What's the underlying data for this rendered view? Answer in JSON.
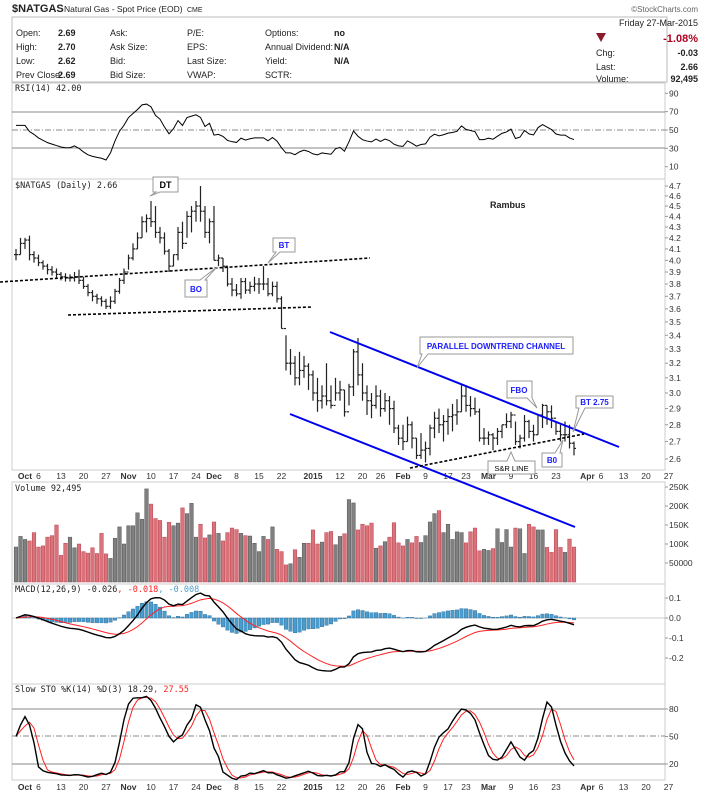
{
  "header": {
    "symbol": "$NATGAS",
    "name": "Natural Gas - Spot Price (EOD)",
    "exchange": "CME",
    "copyright": "©StockCharts.com",
    "date": "Friday  27-Mar-2015",
    "fields": {
      "open_label": "Open:",
      "open": "2.69",
      "high_label": "High:",
      "high": "2.70",
      "low_label": "Low:",
      "low": "2.62",
      "prev_close_label": "Prev Close:",
      "prev_close": "2.69",
      "ask_label": "Ask:",
      "ask_size_label": "Ask Size:",
      "bid_label": "Bid:",
      "bid_size_label": "Bid Size:",
      "pe_label": "P/E:",
      "eps_label": "EPS:",
      "last_size_label": "Last Size:",
      "vwap_label": "VWAP:",
      "options_label": "Options:",
      "options": "no",
      "dividend_label": "Annual Dividend:",
      "dividend": "N/A",
      "yield_label": "Yield:",
      "yield": "N/A",
      "sctr_label": "SCTR:",
      "pct_change": "-1.08%",
      "chg_label": "Chg:",
      "chg": "-0.03",
      "last_label": "Last:",
      "last": "2.66",
      "volume_label": "Volume:",
      "volume": "92,495"
    },
    "down_color": "#8b1a2b"
  },
  "panels": {
    "rsi": {
      "label": "RSI(14) 42.00",
      "ticks": [
        "90",
        "70",
        "50",
        "30",
        "10"
      ]
    },
    "price": {
      "label": "$NATGAS (Daily) 2.66",
      "watermark": "Rambus",
      "ticks": [
        "4.7",
        "4.6",
        "4.5",
        "4.4",
        "4.3",
        "4.2",
        "4.1",
        "4.0",
        "3.9",
        "3.8",
        "3.7",
        "3.6",
        "3.5",
        "3.4",
        "3.3",
        "3.2",
        "3.1",
        "3.0",
        "2.9",
        "2.8",
        "2.7",
        "2.6"
      ]
    },
    "volume": {
      "label": "Volume 92,495",
      "ticks": [
        "250K",
        "200K",
        "150K",
        "100K",
        "50000"
      ]
    },
    "macd": {
      "label": "MACD(12,26,9) -0.026",
      "signal": ", -0.018",
      "hist": ", -0.008",
      "ticks": [
        "0.1",
        "0.0",
        "-0.1",
        "-0.2"
      ]
    },
    "sto": {
      "label": "Slow STO %K(14) %D(3) 18.29",
      "d": ", 27.55",
      "ticks": [
        "80",
        "50",
        "20"
      ]
    }
  },
  "annotations": {
    "dt": "DT",
    "bt": "BT",
    "bo": "BO",
    "channel": "PARALLEL DOWNTREND CHANNEL",
    "fbo": "FBO",
    "bt275": "BT 2.75",
    "b0": "B0",
    "sr_line": "S&R LINE"
  },
  "date_axis": [
    {
      "text": "Oct",
      "bold": true
    },
    {
      "text": "6"
    },
    {
      "text": "13"
    },
    {
      "text": "20"
    },
    {
      "text": "27"
    },
    {
      "text": "Nov",
      "bold": true
    },
    {
      "text": "10"
    },
    {
      "text": "17"
    },
    {
      "text": "24"
    },
    {
      "text": "Dec",
      "bold": true
    },
    {
      "text": "8"
    },
    {
      "text": "15"
    },
    {
      "text": "22"
    },
    {
      "text": "2015",
      "bold": true
    },
    {
      "text": "12"
    },
    {
      "text": "20"
    },
    {
      "text": "26"
    },
    {
      "text": "Feb",
      "bold": true
    },
    {
      "text": "9"
    },
    {
      "text": "17"
    },
    {
      "text": "23"
    },
    {
      "text": "Mar",
      "bold": true
    },
    {
      "text": "9"
    },
    {
      "text": "16"
    },
    {
      "text": "23"
    },
    {
      "text": "Apr",
      "bold": true
    },
    {
      "text": "6"
    },
    {
      "text": "13"
    },
    {
      "text": "20"
    },
    {
      "text": "27"
    }
  ],
  "colors": {
    "up_bar": "#808080",
    "down_bar": "#d9737a",
    "channel": "#0000ee",
    "macd_hist": "#4a9ccc",
    "signal": "#ff2020",
    "line": "#000000"
  },
  "chart_data": {
    "type": "bar",
    "scale": "log",
    "ylim": [
      2.6,
      4.7
    ],
    "ohlc_format": "[high, low, close]",
    "price_hlc": [
      [
        4.1,
        4.0,
        4.05
      ],
      [
        4.2,
        4.05,
        4.15
      ],
      [
        4.2,
        4.1,
        4.18
      ],
      [
        4.22,
        4.0,
        4.05
      ],
      [
        4.08,
        3.98,
        4.02
      ],
      [
        4.05,
        3.95,
        3.98
      ],
      [
        4.0,
        3.92,
        3.95
      ],
      [
        3.97,
        3.88,
        3.92
      ],
      [
        3.95,
        3.87,
        3.9
      ],
      [
        3.93,
        3.85,
        3.88
      ],
      [
        3.9,
        3.83,
        3.86
      ],
      [
        3.89,
        3.82,
        3.85
      ],
      [
        3.88,
        3.82,
        3.85
      ],
      [
        3.9,
        3.82,
        3.86
      ],
      [
        3.92,
        3.8,
        3.83
      ],
      [
        3.86,
        3.76,
        3.78
      ],
      [
        3.8,
        3.7,
        3.73
      ],
      [
        3.75,
        3.66,
        3.7
      ],
      [
        3.72,
        3.64,
        3.68
      ],
      [
        3.7,
        3.62,
        3.66
      ],
      [
        3.68,
        3.6,
        3.62
      ],
      [
        3.7,
        3.6,
        3.66
      ],
      [
        3.76,
        3.64,
        3.74
      ],
      [
        3.85,
        3.72,
        3.83
      ],
      [
        3.93,
        3.8,
        3.9
      ],
      [
        4.05,
        3.92,
        4.02
      ],
      [
        4.15,
        4.0,
        4.1
      ],
      [
        4.25,
        4.1,
        4.2
      ],
      [
        4.4,
        4.2,
        4.35
      ],
      [
        4.42,
        4.25,
        4.38
      ],
      [
        4.55,
        4.3,
        4.35
      ],
      [
        4.5,
        4.2,
        4.25
      ],
      [
        4.3,
        4.15,
        4.2
      ],
      [
        4.25,
        4.05,
        4.08
      ],
      [
        4.1,
        3.9,
        3.95
      ],
      [
        4.05,
        3.95,
        4.05
      ],
      [
        4.3,
        4.0,
        4.25
      ],
      [
        4.35,
        4.1,
        4.15
      ],
      [
        4.45,
        4.2,
        4.4
      ],
      [
        4.5,
        4.25,
        4.45
      ],
      [
        4.55,
        4.35,
        4.5
      ],
      [
        4.7,
        4.35,
        4.45
      ],
      [
        4.5,
        4.2,
        4.25
      ],
      [
        4.38,
        4.15,
        4.35
      ],
      [
        4.5,
        4.0,
        4.0
      ],
      [
        4.05,
        3.95,
        4.02
      ],
      [
        4.02,
        3.9,
        3.95
      ],
      [
        3.95,
        3.78,
        3.8
      ],
      [
        3.85,
        3.7,
        3.75
      ],
      [
        3.8,
        3.7,
        3.72
      ],
      [
        3.85,
        3.68,
        3.82
      ],
      [
        3.85,
        3.72,
        3.75
      ],
      [
        3.82,
        3.72,
        3.78
      ],
      [
        3.86,
        3.74,
        3.8
      ],
      [
        3.85,
        3.72,
        3.8
      ],
      [
        3.95,
        3.75,
        3.8
      ],
      [
        3.85,
        3.7,
        3.72
      ],
      [
        3.82,
        3.7,
        3.78
      ],
      [
        3.82,
        3.65,
        3.68
      ],
      [
        3.7,
        3.45,
        3.45
      ],
      [
        3.4,
        3.15,
        3.2
      ],
      [
        3.3,
        3.12,
        3.2
      ],
      [
        3.25,
        3.05,
        3.1
      ],
      [
        3.28,
        3.05,
        3.15
      ],
      [
        3.25,
        3.1,
        3.18
      ],
      [
        3.2,
        3.02,
        3.12
      ],
      [
        3.15,
        2.95,
        3.0
      ],
      [
        3.1,
        2.88,
        2.95
      ],
      [
        3.05,
        2.9,
        2.98
      ],
      [
        3.2,
        2.92,
        2.95
      ],
      [
        3.05,
        2.9,
        2.92
      ],
      [
        3.1,
        2.95,
        3.0
      ],
      [
        3.08,
        2.95,
        3.02
      ],
      [
        3.02,
        2.85,
        2.88
      ],
      [
        3.06,
        2.92,
        3.04
      ],
      [
        3.3,
        2.98,
        3.28
      ],
      [
        3.38,
        3.05,
        3.12
      ],
      [
        3.2,
        2.95,
        3.0
      ],
      [
        3.05,
        2.86,
        2.95
      ],
      [
        3.0,
        2.84,
        2.92
      ],
      [
        3.05,
        2.9,
        2.98
      ],
      [
        3.02,
        2.85,
        2.9
      ],
      [
        3.0,
        2.88,
        2.95
      ],
      [
        2.98,
        2.8,
        2.9
      ],
      [
        2.95,
        2.75,
        2.78
      ],
      [
        2.8,
        2.68,
        2.72
      ],
      [
        2.8,
        2.65,
        2.7
      ],
      [
        2.85,
        2.7,
        2.8
      ],
      [
        2.82,
        2.66,
        2.72
      ],
      [
        2.72,
        2.6,
        2.62
      ],
      [
        2.75,
        2.6,
        2.65
      ],
      [
        2.7,
        2.58,
        2.66
      ],
      [
        2.8,
        2.62,
        2.78
      ],
      [
        2.88,
        2.72,
        2.84
      ],
      [
        2.9,
        2.75,
        2.8
      ],
      [
        2.86,
        2.7,
        2.82
      ],
      [
        2.9,
        2.74,
        2.85
      ],
      [
        2.93,
        2.76,
        2.86
      ],
      [
        2.96,
        2.8,
        2.88
      ],
      [
        3.05,
        2.88,
        2.98
      ],
      [
        3.05,
        2.88,
        2.92
      ],
      [
        2.98,
        2.85,
        2.9
      ],
      [
        2.97,
        2.86,
        2.88
      ],
      [
        2.9,
        2.7,
        2.72
      ],
      [
        2.78,
        2.68,
        2.72
      ],
      [
        2.76,
        2.68,
        2.74
      ],
      [
        2.75,
        2.65,
        2.72
      ],
      [
        2.78,
        2.68,
        2.76
      ],
      [
        2.8,
        2.72,
        2.8
      ],
      [
        2.87,
        2.78,
        2.82
      ],
      [
        2.88,
        2.78,
        2.86
      ],
      [
        2.82,
        2.68,
        2.7
      ],
      [
        2.74,
        2.66,
        2.72
      ],
      [
        2.86,
        2.7,
        2.82
      ],
      [
        2.83,
        2.72,
        2.76
      ],
      [
        2.8,
        2.7,
        2.74
      ],
      [
        2.86,
        2.74,
        2.86
      ],
      [
        2.93,
        2.78,
        2.92
      ],
      [
        2.92,
        2.8,
        2.88
      ],
      [
        2.92,
        2.78,
        2.84
      ],
      [
        2.82,
        2.74,
        2.76
      ],
      [
        2.8,
        2.7,
        2.74
      ],
      [
        2.82,
        2.7,
        2.74
      ],
      [
        2.8,
        2.66,
        2.69
      ],
      [
        2.7,
        2.62,
        2.66
      ]
    ],
    "volume_k": [
      92,
      120,
      112,
      108,
      130,
      92,
      95,
      118,
      122,
      150,
      70,
      102,
      118,
      90,
      100,
      80,
      76,
      90,
      75,
      128,
      74,
      62,
      115,
      145,
      100,
      148,
      148,
      182,
      165,
      245,
      205,
      167,
      162,
      118,
      157,
      148,
      155,
      195,
      180,
      207,
      118,
      152,
      116,
      124,
      158,
      128,
      108,
      130,
      142,
      138,
      128,
      122,
      121,
      102,
      80,
      120,
      112,
      145,
      86,
      80,
      45,
      48,
      85,
      65,
      102,
      102,
      137,
      100,
      105,
      130,
      133,
      98,
      120,
      127,
      217,
      208,
      137,
      152,
      148,
      155,
      89,
      95,
      106,
      118,
      156,
      103,
      95,
      112,
      103,
      120,
      104,
      122,
      158,
      180,
      188,
      130,
      152,
      112,
      132,
      130,
      103,
      132,
      142,
      82,
      86,
      83,
      88,
      140,
      104,
      138,
      92,
      142,
      140,
      75,
      152,
      145,
      137,
      137,
      91,
      78,
      138,
      91,
      78,
      113,
      92
    ],
    "volume_ylim": [
      0,
      260000
    ],
    "rsi_ylim": [
      0,
      100
    ],
    "macd_ylim": [
      -0.3,
      0.15
    ],
    "sto_ylim": [
      0,
      100
    ]
  }
}
